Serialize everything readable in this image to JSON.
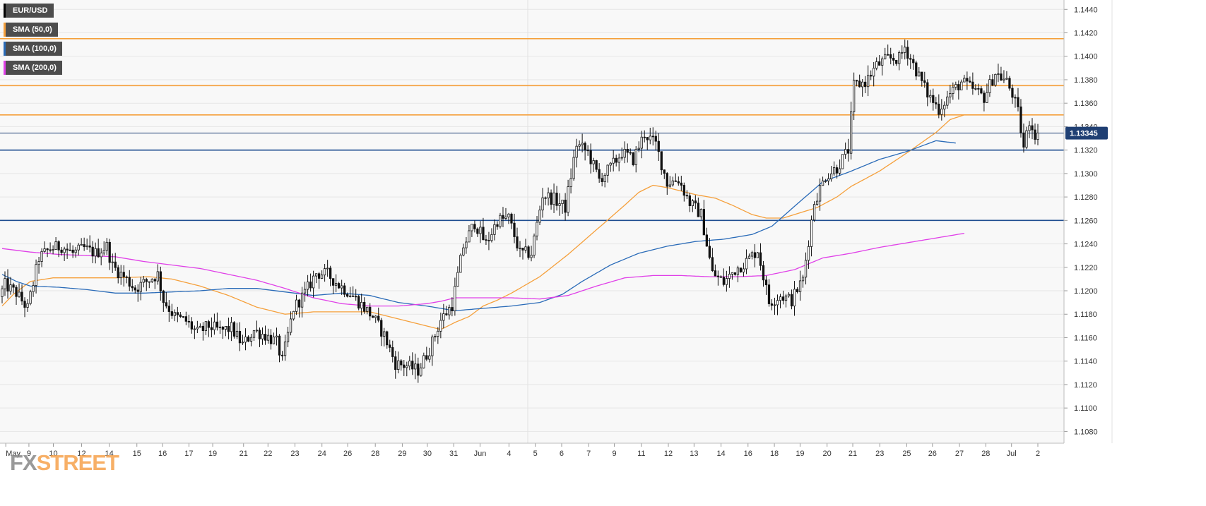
{
  "chart_data": {
    "type": "candlestick",
    "symbol": "EUR/USD",
    "current_price": "1.13345",
    "ylim": [
      1.107,
      1.1448
    ],
    "y_ticks": [
      "1.1440",
      "1.1420",
      "1.1400",
      "1.1380",
      "1.1360",
      "1.1340",
      "1.1320",
      "1.1300",
      "1.1280",
      "1.1260",
      "1.1240",
      "1.1220",
      "1.1200",
      "1.1180",
      "1.1160",
      "1.1140",
      "1.1120",
      "1.1100",
      "1.1080"
    ],
    "x_ticks": [
      "May",
      "9",
      "10",
      "12",
      "14",
      "15",
      "16",
      "17",
      "19",
      "21",
      "22",
      "23",
      "24",
      "26",
      "28",
      "29",
      "30",
      "31",
      "Jun",
      "4",
      "5",
      "6",
      "7",
      "9",
      "11",
      "12",
      "13",
      "14",
      "16",
      "18",
      "19",
      "20",
      "21",
      "23",
      "25",
      "26",
      "27",
      "28",
      "Jul",
      "2"
    ],
    "legend": [
      {
        "label": "EUR/USD",
        "color": "#000000"
      },
      {
        "label": "SMA (50,0)",
        "color": "#f5a03c"
      },
      {
        "label": "SMA (100,0)",
        "color": "#2a6bb8"
      },
      {
        "label": "SMA (200,0)",
        "color": "#e040e8"
      }
    ],
    "horizontal_levels": [
      {
        "value": 1.1415,
        "color": "#f5a03c"
      },
      {
        "value": 1.1375,
        "color": "#f5a03c"
      },
      {
        "value": 1.135,
        "color": "#f5a03c"
      },
      {
        "value": 1.132,
        "color": "#1f4e91"
      },
      {
        "value": 1.126,
        "color": "#1f4e91"
      }
    ],
    "sma": [
      {
        "name": "SMA (50,0)",
        "color": "#f5a03c",
        "points": [
          [
            0,
            1.1187
          ],
          [
            4,
            1.1197
          ],
          [
            10,
            1.1208
          ],
          [
            18,
            1.1211
          ],
          [
            28,
            1.1211
          ],
          [
            40,
            1.1211
          ],
          [
            52,
            1.1212
          ],
          [
            60,
            1.121
          ],
          [
            70,
            1.1204
          ],
          [
            80,
            1.1196
          ],
          [
            90,
            1.1186
          ],
          [
            100,
            1.118
          ],
          [
            110,
            1.1182
          ],
          [
            120,
            1.1182
          ],
          [
            130,
            1.1182
          ],
          [
            140,
            1.1176
          ],
          [
            150,
            1.117
          ],
          [
            155,
            1.1167
          ],
          [
            160,
            1.1173
          ],
          [
            165,
            1.1178
          ],
          [
            170,
            1.1187
          ],
          [
            175,
            1.1192
          ],
          [
            180,
            1.1198
          ],
          [
            190,
            1.1212
          ],
          [
            200,
            1.1231
          ],
          [
            210,
            1.1252
          ],
          [
            220,
            1.1273
          ],
          [
            225,
            1.1284
          ],
          [
            230,
            1.129
          ],
          [
            235,
            1.1288
          ],
          [
            240,
            1.1285
          ],
          [
            245,
            1.1282
          ],
          [
            252,
            1.1279
          ],
          [
            258,
            1.1273
          ],
          [
            265,
            1.1265
          ],
          [
            270,
            1.1262
          ],
          [
            276,
            1.1262
          ],
          [
            280,
            1.1265
          ],
          [
            288,
            1.1271
          ],
          [
            295,
            1.128
          ],
          [
            300,
            1.1289
          ],
          [
            310,
            1.1302
          ],
          [
            320,
            1.1318
          ],
          [
            330,
            1.1335
          ],
          [
            335,
            1.1346
          ],
          [
            340,
            1.135
          ]
        ]
      },
      {
        "name": "SMA (100,0)",
        "color": "#2a6bb8",
        "points": [
          [
            0,
            1.1214
          ],
          [
            5,
            1.1208
          ],
          [
            10,
            1.1204
          ],
          [
            20,
            1.1203
          ],
          [
            30,
            1.1201
          ],
          [
            40,
            1.1198
          ],
          [
            50,
            1.1198
          ],
          [
            60,
            1.1199
          ],
          [
            70,
            1.12
          ],
          [
            80,
            1.1202
          ],
          [
            90,
            1.1202
          ],
          [
            100,
            1.1199
          ],
          [
            110,
            1.1196
          ],
          [
            120,
            1.1198
          ],
          [
            130,
            1.1196
          ],
          [
            140,
            1.119
          ],
          [
            150,
            1.1187
          ],
          [
            160,
            1.1183
          ],
          [
            170,
            1.1185
          ],
          [
            180,
            1.1187
          ],
          [
            190,
            1.119
          ],
          [
            198,
            1.1197
          ],
          [
            205,
            1.1208
          ],
          [
            215,
            1.1222
          ],
          [
            225,
            1.1232
          ],
          [
            235,
            1.1238
          ],
          [
            245,
            1.1242
          ],
          [
            255,
            1.1244
          ],
          [
            265,
            1.1248
          ],
          [
            272,
            1.1255
          ],
          [
            280,
            1.1272
          ],
          [
            290,
            1.1293
          ],
          [
            300,
            1.1302
          ],
          [
            310,
            1.1312
          ],
          [
            320,
            1.1319
          ],
          [
            330,
            1.1328
          ],
          [
            337,
            1.1326
          ]
        ]
      },
      {
        "name": "SMA (200,0)",
        "color": "#e040e8",
        "points": [
          [
            0,
            1.1236
          ],
          [
            10,
            1.1233
          ],
          [
            20,
            1.1231
          ],
          [
            30,
            1.123
          ],
          [
            40,
            1.1229
          ],
          [
            50,
            1.1225
          ],
          [
            60,
            1.1222
          ],
          [
            70,
            1.1219
          ],
          [
            80,
            1.1214
          ],
          [
            90,
            1.1209
          ],
          [
            100,
            1.1202
          ],
          [
            110,
            1.1194
          ],
          [
            120,
            1.1189
          ],
          [
            130,
            1.1187
          ],
          [
            140,
            1.1187
          ],
          [
            150,
            1.1189
          ],
          [
            155,
            1.1191
          ],
          [
            160,
            1.1194
          ],
          [
            170,
            1.1194
          ],
          [
            180,
            1.1194
          ],
          [
            190,
            1.1193
          ],
          [
            200,
            1.1196
          ],
          [
            210,
            1.1204
          ],
          [
            220,
            1.1211
          ],
          [
            230,
            1.1213
          ],
          [
            240,
            1.1213
          ],
          [
            250,
            1.1212
          ],
          [
            260,
            1.1212
          ],
          [
            270,
            1.1213
          ],
          [
            280,
            1.1218
          ],
          [
            290,
            1.1228
          ],
          [
            300,
            1.1232
          ],
          [
            310,
            1.1237
          ],
          [
            320,
            1.1241
          ],
          [
            330,
            1.1245
          ],
          [
            340,
            1.1249
          ]
        ]
      }
    ],
    "ohlc_anchors": [
      [
        0,
        1.1195
      ],
      [
        2,
        1.1205
      ],
      [
        6,
        1.1198
      ],
      [
        10,
        1.1185
      ],
      [
        14,
        1.1228
      ],
      [
        18,
        1.1236
      ],
      [
        22,
        1.1238
      ],
      [
        26,
        1.1232
      ],
      [
        30,
        1.1236
      ],
      [
        34,
        1.1232
      ],
      [
        38,
        1.1238
      ],
      [
        40,
        1.1221
      ],
      [
        44,
        1.1212
      ],
      [
        48,
        1.1202
      ],
      [
        52,
        1.1208
      ],
      [
        56,
        1.1214
      ],
      [
        58,
        1.1192
      ],
      [
        62,
        1.1178
      ],
      [
        66,
        1.1174
      ],
      [
        70,
        1.1164
      ],
      [
        74,
        1.117
      ],
      [
        78,
        1.1166
      ],
      [
        82,
        1.1168
      ],
      [
        86,
        1.1154
      ],
      [
        90,
        1.1166
      ],
      [
        94,
        1.1162
      ],
      [
        98,
        1.1156
      ],
      [
        100,
        1.114
      ],
      [
        104,
        1.1185
      ],
      [
        108,
        1.1198
      ],
      [
        112,
        1.1215
      ],
      [
        116,
        1.1214
      ],
      [
        120,
        1.1205
      ],
      [
        124,
        1.1198
      ],
      [
        128,
        1.1188
      ],
      [
        132,
        1.1178
      ],
      [
        136,
        1.1162
      ],
      [
        140,
        1.1138
      ],
      [
        144,
        1.1136
      ],
      [
        148,
        1.1132
      ],
      [
        152,
        1.115
      ],
      [
        156,
        1.1175
      ],
      [
        160,
        1.1188
      ],
      [
        164,
        1.1238
      ],
      [
        168,
        1.1258
      ],
      [
        172,
        1.124
      ],
      [
        176,
        1.126
      ],
      [
        180,
        1.1262
      ],
      [
        184,
        1.1232
      ],
      [
        188,
        1.1232
      ],
      [
        192,
        1.1282
      ],
      [
        196,
        1.1278
      ],
      [
        200,
        1.1271
      ],
      [
        204,
        1.1325
      ],
      [
        208,
        1.1318
      ],
      [
        212,
        1.1295
      ],
      [
        216,
        1.1305
      ],
      [
        220,
        1.1318
      ],
      [
        224,
        1.1312
      ],
      [
        228,
        1.1334
      ],
      [
        232,
        1.1325
      ],
      [
        236,
        1.1292
      ],
      [
        240,
        1.1295
      ],
      [
        244,
        1.1275
      ],
      [
        248,
        1.1265
      ],
      [
        252,
        1.1215
      ],
      [
        256,
        1.1207
      ],
      [
        260,
        1.1218
      ],
      [
        264,
        1.1225
      ],
      [
        268,
        1.1235
      ],
      [
        272,
        1.119
      ],
      [
        276,
        1.1196
      ],
      [
        280,
        1.1192
      ],
      [
        284,
        1.121
      ],
      [
        288,
        1.1276
      ],
      [
        292,
        1.1298
      ],
      [
        296,
        1.1305
      ],
      [
        300,
        1.132
      ],
      [
        302,
        1.1375
      ],
      [
        306,
        1.1378
      ],
      [
        310,
        1.1392
      ],
      [
        314,
        1.1398
      ],
      [
        318,
        1.1398
      ],
      [
        320,
        1.1408
      ],
      [
        324,
        1.1388
      ],
      [
        328,
        1.1368
      ],
      [
        332,
        1.1355
      ],
      [
        336,
        1.1368
      ],
      [
        340,
        1.1378
      ],
      [
        344,
        1.1372
      ],
      [
        348,
        1.1365
      ],
      [
        352,
        1.1386
      ],
      [
        356,
        1.1378
      ],
      [
        358,
        1.1368
      ],
      [
        360,
        1.1352
      ],
      [
        362,
        1.1322
      ],
      [
        364,
        1.1345
      ],
      [
        366,
        1.1334
      ]
    ]
  }
}
